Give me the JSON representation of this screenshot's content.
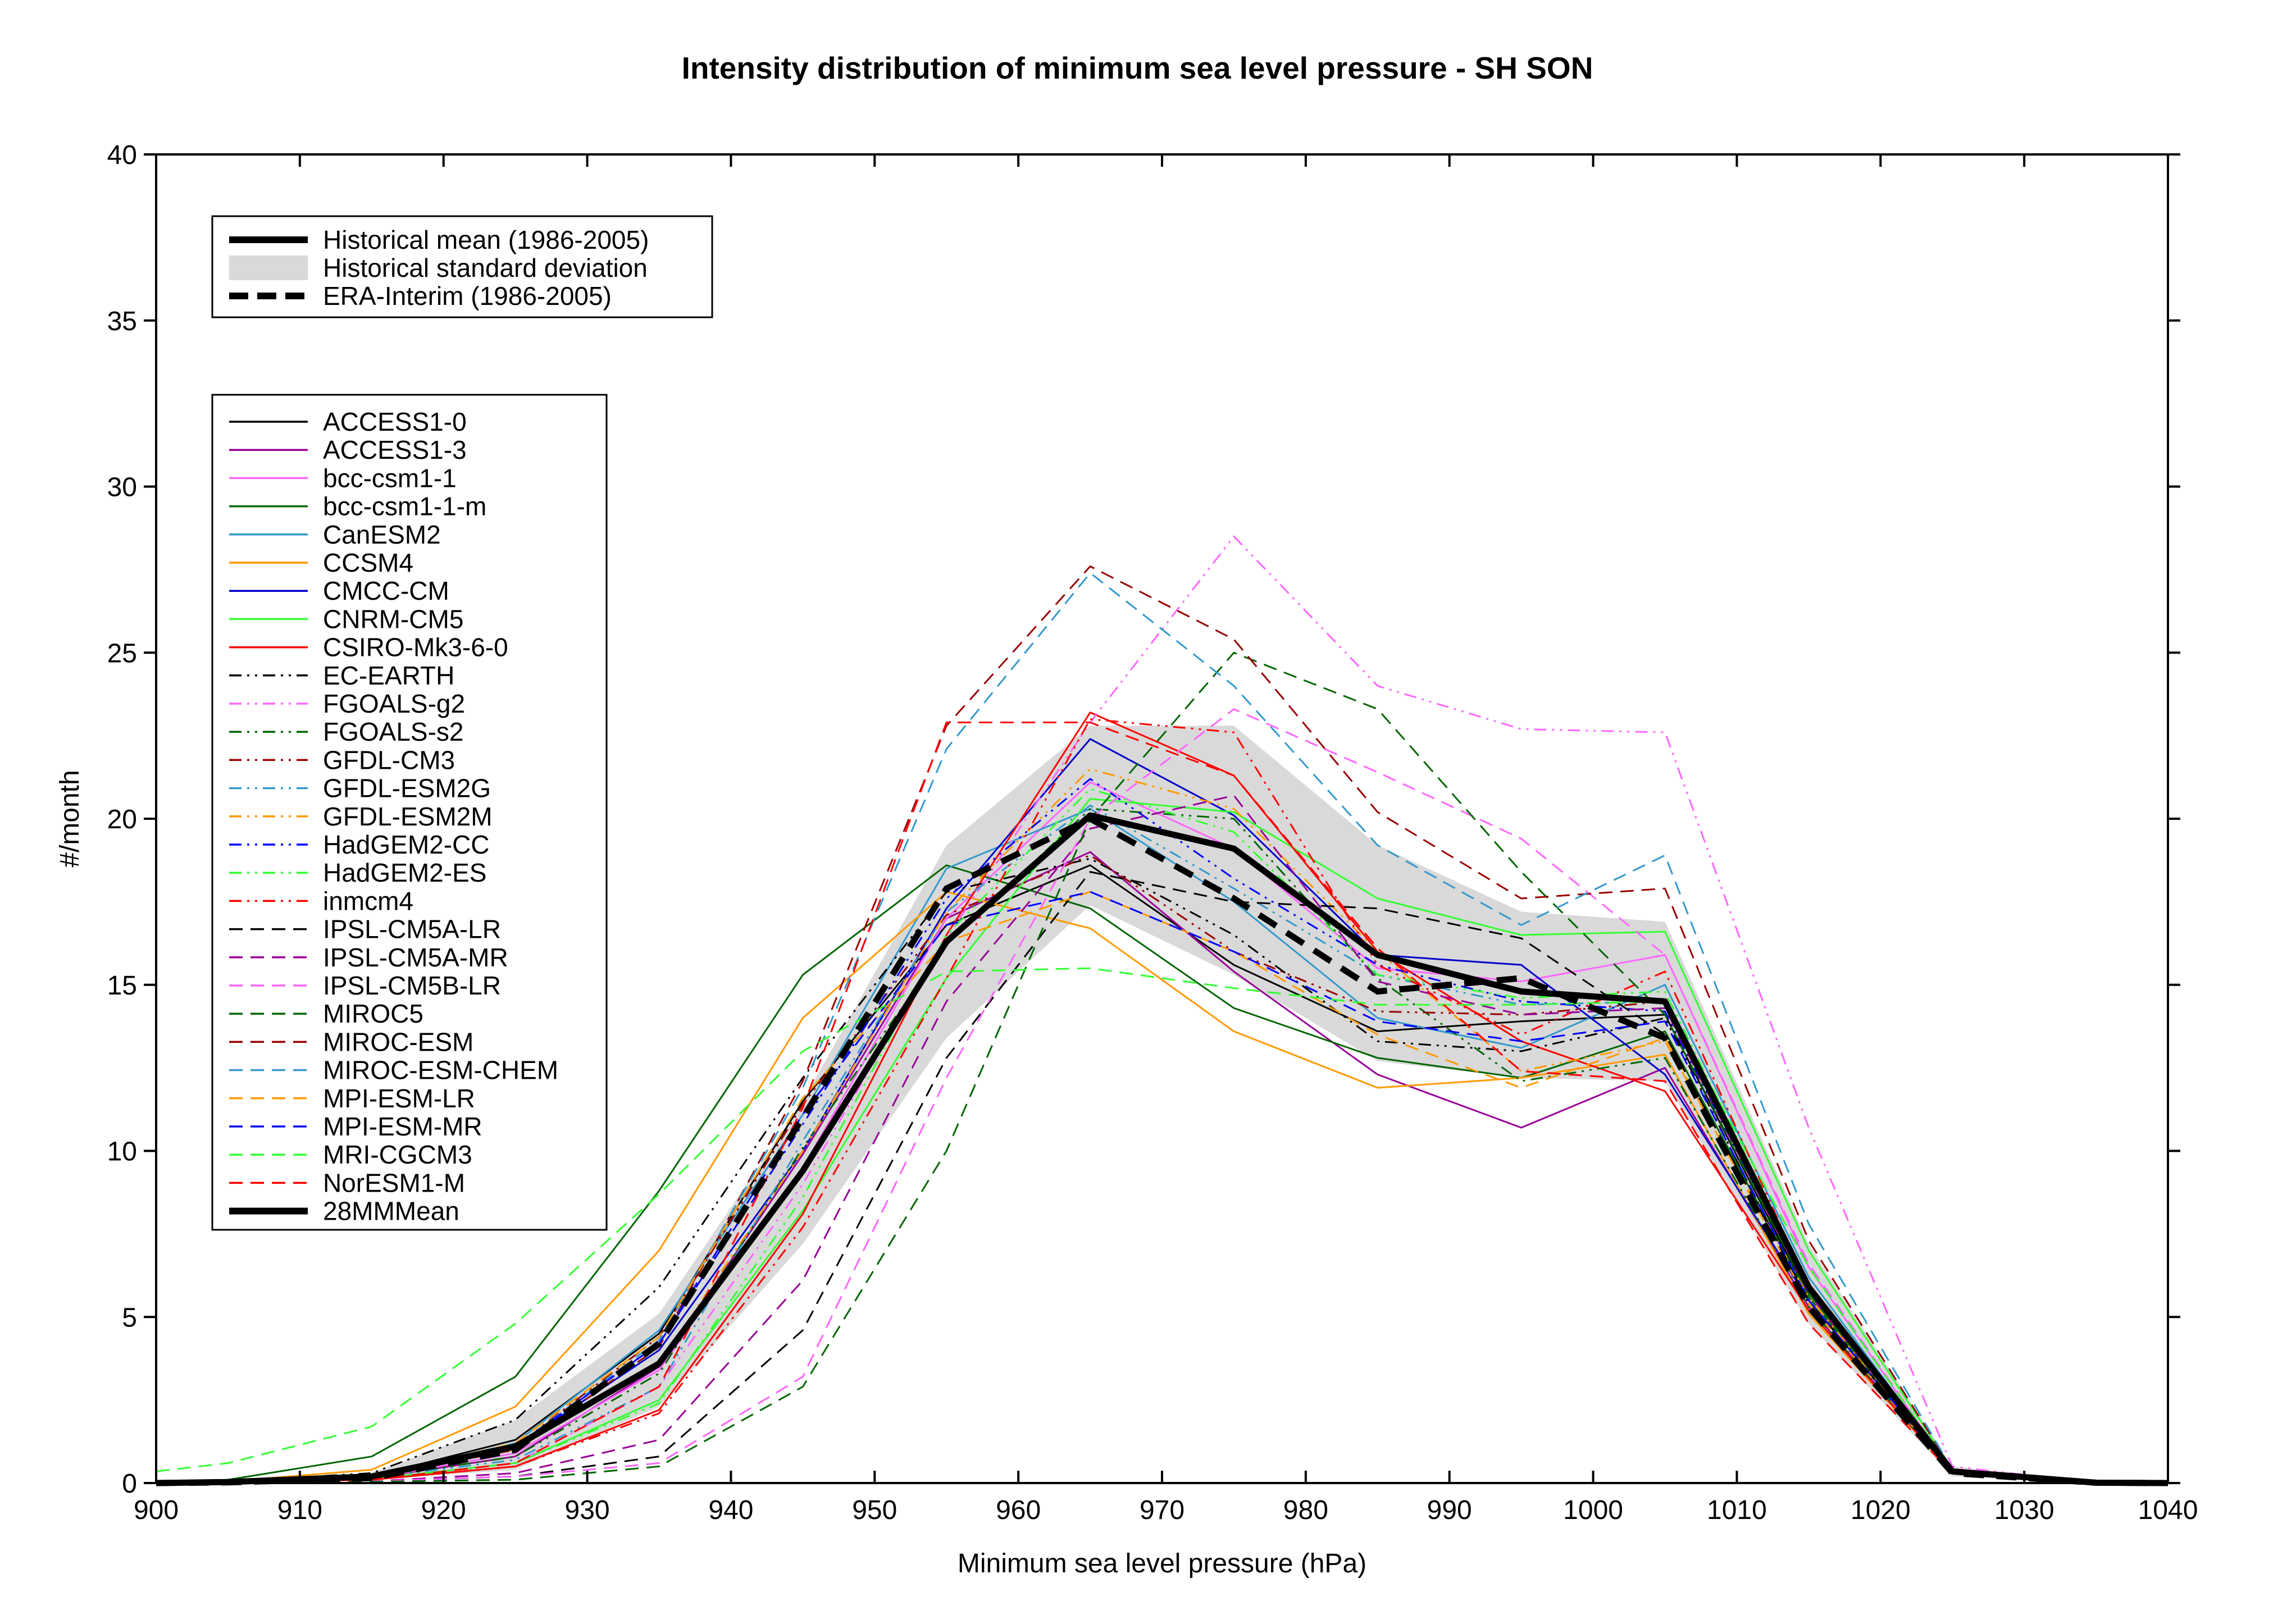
{
  "chart_data": {
    "type": "line",
    "title": "Intensity distribution of minimum sea level pressure - SH SON",
    "xlabel": "Minimum sea level pressure (hPa)",
    "ylabel": "#/month",
    "xlim": [
      900,
      1040
    ],
    "ylim": [
      0,
      40
    ],
    "xticks": [
      "900",
      "910",
      "920",
      "930",
      "940",
      "950",
      "960",
      "970",
      "980",
      "990",
      "1000",
      "1010",
      "1020",
      "1030",
      "1040"
    ],
    "yticks": [
      "0",
      "5",
      "10",
      "15",
      "20",
      "25",
      "30",
      "35",
      "40"
    ],
    "x": [
      900,
      905,
      915,
      925,
      935,
      945,
      955,
      965,
      975,
      985,
      995,
      1005,
      1015,
      1025,
      1035,
      1040
    ],
    "legend_top": {
      "placement": "upper-left",
      "entries": [
        "Historical mean (1986-2005)",
        "Historical standard deviation",
        "ERA-Interim (1986-2005)"
      ]
    },
    "std_band": {
      "name": "Historical standard deviation",
      "upper": [
        0,
        0.05,
        0.3,
        1.9,
        5.1,
        11.5,
        19.2,
        22.8,
        22.8,
        19.2,
        17.2,
        16.9,
        7.2,
        0.5,
        0.02,
        0
      ],
      "lower": [
        0,
        0.02,
        0.1,
        0.4,
        2.3,
        7.2,
        13.4,
        17.4,
        15.3,
        12.7,
        12.2,
        12.1,
        4.8,
        0.2,
        0,
        0
      ]
    },
    "historical_mean": {
      "name": "Historical mean (1986-2005)",
      "values": [
        0,
        0.03,
        0.2,
        1.1,
        3.6,
        9.4,
        16.3,
        20.1,
        19.1,
        15.9,
        14.8,
        14.5,
        5.9,
        0.35,
        0.01,
        0
      ]
    },
    "era_interim": {
      "name": "ERA-Interim (1986-2005)",
      "values": [
        0,
        0.02,
        0.15,
        1.0,
        4.2,
        11.0,
        17.9,
        20.0,
        17.6,
        14.8,
        15.2,
        13.4,
        5.3,
        0.3,
        0.01,
        0
      ]
    },
    "series": [
      {
        "name": "ACCESS1-0",
        "color": "#000000",
        "dash": "solid",
        "width": 3,
        "values": [
          0,
          0.03,
          0.2,
          1.3,
          4.5,
          11.5,
          16.8,
          18.6,
          15.6,
          13.6,
          13.9,
          14.1,
          5.6,
          0.3,
          0,
          0
        ]
      },
      {
        "name": "ACCESS1-3",
        "color": "#990099",
        "dash": "solid",
        "width": 3,
        "values": [
          0,
          0.02,
          0.15,
          0.8,
          3.5,
          9.9,
          17.0,
          19.0,
          15.4,
          12.3,
          10.7,
          12.5,
          5.3,
          0.3,
          0,
          0
        ]
      },
      {
        "name": "bcc-csm1-1",
        "color": "#ff66ff",
        "dash": "solid",
        "width": 3,
        "values": [
          0,
          0.02,
          0.15,
          0.9,
          3.4,
          9.5,
          17.0,
          21.1,
          19.1,
          15.5,
          15.1,
          15.9,
          6.5,
          0.35,
          0,
          0
        ]
      },
      {
        "name": "bcc-csm1-1-m",
        "color": "#006600",
        "dash": "solid",
        "width": 3,
        "values": [
          0,
          0.1,
          0.8,
          3.2,
          8.8,
          15.3,
          18.6,
          17.3,
          14.3,
          12.8,
          12.2,
          13.6,
          5.6,
          0.3,
          0,
          0
        ]
      },
      {
        "name": "CanESM2",
        "color": "#3399cc",
        "dash": "solid",
        "width": 3,
        "values": [
          0,
          0.03,
          0.2,
          1.2,
          4.6,
          11.1,
          18.5,
          20.3,
          17.5,
          14.0,
          13.1,
          15.0,
          6.2,
          0.35,
          0,
          0
        ]
      },
      {
        "name": "CCSM4",
        "color": "#ff9900",
        "dash": "solid",
        "width": 3,
        "values": [
          0,
          0.05,
          0.4,
          2.3,
          7.0,
          14.0,
          17.8,
          16.7,
          13.6,
          11.9,
          12.2,
          12.9,
          5.1,
          0.3,
          0,
          0
        ]
      },
      {
        "name": "CMCC-CM",
        "color": "#0000cc",
        "dash": "solid",
        "width": 3,
        "values": [
          0,
          0.03,
          0.2,
          1.1,
          4.0,
          10.0,
          17.3,
          22.4,
          20.1,
          15.9,
          15.6,
          12.3,
          5.5,
          0.3,
          0,
          0
        ]
      },
      {
        "name": "CNRM-CM5",
        "color": "#33ff33",
        "dash": "solid",
        "width": 3,
        "values": [
          0,
          0.02,
          0.12,
          0.6,
          2.5,
          8.2,
          15.2,
          20.6,
          20.2,
          17.6,
          16.5,
          16.6,
          7.0,
          0.4,
          0,
          0
        ]
      },
      {
        "name": "CSIRO-Mk3-6-0",
        "color": "#ff0000",
        "dash": "solid",
        "width": 3,
        "values": [
          0,
          0.02,
          0.1,
          0.5,
          2.2,
          8.1,
          16.5,
          23.2,
          21.3,
          16.0,
          13.3,
          11.8,
          5.2,
          0.3,
          0,
          0
        ]
      },
      {
        "name": "EC-EARTH",
        "color": "#000000",
        "dash": "dashdotdot",
        "width": 3,
        "values": [
          0,
          0.05,
          0.3,
          1.9,
          5.9,
          12.2,
          17.8,
          18.8,
          16.5,
          13.3,
          13.0,
          14.0,
          5.4,
          0.3,
          0,
          0
        ]
      },
      {
        "name": "FGOALS-g2",
        "color": "#ff66ff",
        "dash": "dashdotdot",
        "width": 3,
        "values": [
          0,
          0.02,
          0.1,
          0.6,
          2.9,
          9.0,
          16.4,
          22.9,
          28.5,
          24.0,
          22.7,
          22.6,
          10.7,
          0.5,
          0,
          0
        ]
      },
      {
        "name": "FGOALS-s2",
        "color": "#006600",
        "dash": "dashdotdot",
        "width": 3,
        "values": [
          0,
          0.03,
          0.15,
          0.8,
          3.3,
          10.1,
          16.2,
          20.3,
          20.0,
          15.2,
          12.1,
          12.8,
          5.3,
          0.3,
          0,
          0
        ]
      },
      {
        "name": "GFDL-CM3",
        "color": "#990000",
        "dash": "dashdotdot",
        "width": 3,
        "values": [
          0,
          0.03,
          0.2,
          1.1,
          4.4,
          11.4,
          17.1,
          18.9,
          16.0,
          14.2,
          14.1,
          14.5,
          5.8,
          0.35,
          0,
          0
        ]
      },
      {
        "name": "GFDL-ESM2G",
        "color": "#3399cc",
        "dash": "dashdotdot",
        "width": 3,
        "values": [
          0,
          0.02,
          0.15,
          0.7,
          2.9,
          10.3,
          17.2,
          20.4,
          17.9,
          15.3,
          14.4,
          14.5,
          5.9,
          0.35,
          0,
          0
        ]
      },
      {
        "name": "GFDL-ESM2M",
        "color": "#ff9900",
        "dash": "dashdotdot",
        "width": 3,
        "values": [
          0,
          0.03,
          0.2,
          1.0,
          3.6,
          10.0,
          17.2,
          21.5,
          20.3,
          16.0,
          12.4,
          13.3,
          5.6,
          0.3,
          0,
          0
        ]
      },
      {
        "name": "HadGEM2-CC",
        "color": "#0000ff",
        "dash": "dashdotdot",
        "width": 3,
        "values": [
          0,
          0.03,
          0.2,
          1.1,
          4.2,
          10.8,
          17.6,
          21.2,
          18.2,
          15.6,
          14.5,
          14.2,
          5.8,
          0.35,
          0,
          0
        ]
      },
      {
        "name": "HadGEM2-ES",
        "color": "#33ff33",
        "dash": "dashdotdot",
        "width": 3,
        "values": [
          0,
          0.02,
          0.12,
          0.6,
          2.4,
          8.6,
          16.5,
          20.9,
          19.6,
          15.3,
          14.6,
          14.8,
          6.0,
          0.35,
          0,
          0
        ]
      },
      {
        "name": "inmcm4",
        "color": "#ff0000",
        "dash": "dashdotdot",
        "width": 3,
        "values": [
          0,
          0.02,
          0.1,
          0.5,
          2.1,
          7.7,
          15.2,
          23.0,
          22.6,
          15.6,
          13.5,
          15.4,
          5.9,
          0.3,
          0,
          0
        ]
      },
      {
        "name": "IPSL-CM5A-LR",
        "color": "#000000",
        "dash": "dash",
        "width": 3,
        "values": [
          0,
          0.01,
          0.05,
          0.2,
          0.8,
          4.6,
          12.8,
          18.4,
          17.5,
          17.3,
          16.4,
          13.5,
          5.5,
          0.3,
          0,
          0
        ]
      },
      {
        "name": "IPSL-CM5A-MR",
        "color": "#990099",
        "dash": "dash",
        "width": 3,
        "values": [
          0,
          0.01,
          0.05,
          0.3,
          1.3,
          6.1,
          14.5,
          19.7,
          20.7,
          15.1,
          14.1,
          14.3,
          5.7,
          0.3,
          0,
          0
        ]
      },
      {
        "name": "IPSL-CM5B-LR",
        "color": "#ff66ff",
        "dash": "dash",
        "width": 3,
        "values": [
          0,
          0.01,
          0.05,
          0.2,
          0.6,
          3.2,
          12.2,
          20.0,
          23.3,
          21.4,
          19.4,
          15.9,
          6.6,
          0.35,
          0,
          0
        ]
      },
      {
        "name": "MIROC5",
        "color": "#006600",
        "dash": "dash",
        "width": 3,
        "values": [
          0,
          0.01,
          0.04,
          0.1,
          0.5,
          2.9,
          10.0,
          20.0,
          25.0,
          23.3,
          18.4,
          14.1,
          5.7,
          0.3,
          0,
          0
        ]
      },
      {
        "name": "MIROC-ESM",
        "color": "#990000",
        "dash": "dash",
        "width": 3,
        "values": [
          0,
          0.03,
          0.2,
          1.0,
          4.1,
          12.1,
          22.8,
          27.6,
          25.4,
          20.2,
          17.6,
          17.9,
          7.3,
          0.4,
          0,
          0
        ]
      },
      {
        "name": "MIROC-ESM-CHEM",
        "color": "#3399cc",
        "dash": "dash",
        "width": 3,
        "values": [
          0,
          0.03,
          0.2,
          1.1,
          4.3,
          11.9,
          22.1,
          27.4,
          24.0,
          19.2,
          16.8,
          18.9,
          7.8,
          0.4,
          0,
          0
        ]
      },
      {
        "name": "MPI-ESM-LR",
        "color": "#ff9900",
        "dash": "dash",
        "width": 3,
        "values": [
          0,
          0.03,
          0.2,
          1.2,
          4.4,
          11.6,
          16.3,
          17.8,
          16.0,
          13.5,
          11.9,
          13.4,
          5.4,
          0.3,
          0,
          0
        ]
      },
      {
        "name": "MPI-ESM-MR",
        "color": "#0000ff",
        "dash": "dash",
        "width": 3,
        "values": [
          0,
          0.03,
          0.2,
          1.1,
          4.2,
          11.1,
          16.8,
          17.8,
          16.0,
          13.9,
          13.3,
          13.9,
          5.5,
          0.3,
          0,
          0
        ]
      },
      {
        "name": "MRI-CGCM3",
        "color": "#33ff33",
        "dash": "dash",
        "width": 3,
        "values": [
          0.35,
          0.6,
          1.7,
          4.8,
          8.7,
          13.0,
          15.4,
          15.5,
          14.9,
          14.4,
          14.4,
          14.5,
          6.5,
          0.35,
          0,
          0
        ]
      },
      {
        "name": "NorESM1-M",
        "color": "#ff0000",
        "dash": "dash",
        "width": 3,
        "values": [
          0,
          0.02,
          0.1,
          0.6,
          2.9,
          11.3,
          22.9,
          22.9,
          21.3,
          16.1,
          12.4,
          12.1,
          4.8,
          0.3,
          0,
          0
        ]
      },
      {
        "name": "28MMMean",
        "color": "#000000",
        "dash": "solid",
        "width": 11,
        "values": [
          0,
          0.03,
          0.2,
          1.1,
          3.6,
          9.4,
          16.3,
          20.1,
          19.1,
          15.9,
          14.8,
          14.5,
          5.9,
          0.35,
          0.01,
          0
        ]
      }
    ]
  }
}
